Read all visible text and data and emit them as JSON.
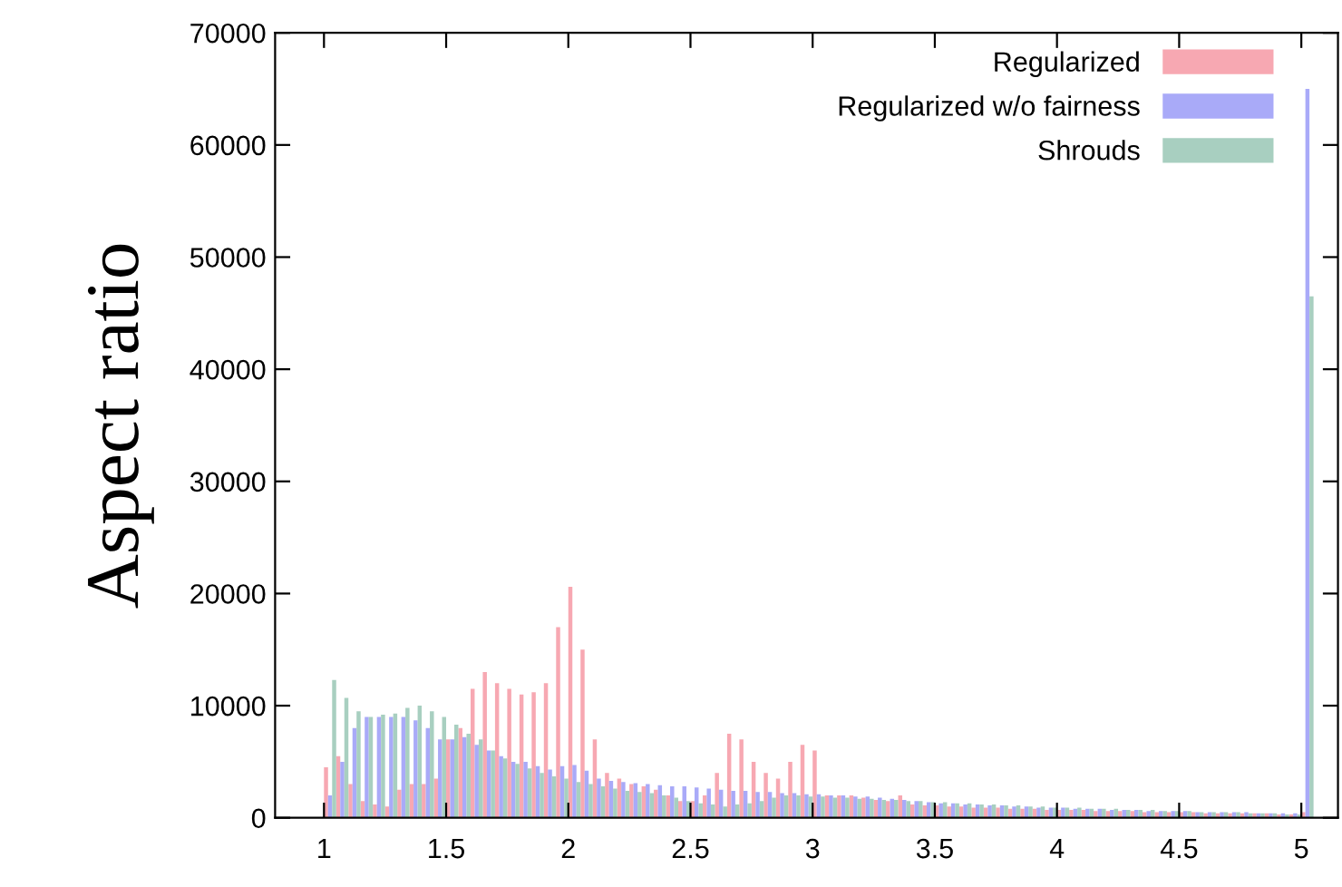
{
  "chart_data": {
    "type": "histogram",
    "ylabel": "Aspect ratio",
    "bins": [
      1,
      1.05,
      1.1,
      1.15,
      1.2,
      1.25,
      1.3,
      1.35,
      1.4,
      1.45,
      1.5,
      1.55,
      1.6,
      1.65,
      1.7,
      1.75,
      1.8,
      1.85,
      1.9,
      1.95,
      2,
      2.05,
      2.1,
      2.15,
      2.2,
      2.25,
      2.3,
      2.35,
      2.4,
      2.45,
      2.5,
      2.55,
      2.6,
      2.65,
      2.7,
      2.75,
      2.8,
      2.85,
      2.9,
      2.95,
      3,
      3.05,
      3.1,
      3.15,
      3.2,
      3.25,
      3.3,
      3.35,
      3.4,
      3.45,
      3.5,
      3.55,
      3.6,
      3.65,
      3.7,
      3.75,
      3.8,
      3.85,
      3.9,
      3.95,
      4,
      4.05,
      4.1,
      4.15,
      4.2,
      4.25,
      4.3,
      4.35,
      4.4,
      4.45,
      4.5,
      4.55,
      4.6,
      4.65,
      4.7,
      4.75,
      4.8,
      4.85,
      4.9,
      4.95,
      5,
      5.05
    ],
    "series": [
      {
        "name": "Regularized",
        "color": "#f7a8b2",
        "values": [
          4500,
          5500,
          3000,
          1500,
          1200,
          1000,
          2500,
          3000,
          3000,
          3500,
          7000,
          8000,
          11500,
          13000,
          12000,
          11500,
          11000,
          11200,
          12000,
          17000,
          20600,
          15000,
          7000,
          4000,
          3500,
          3000,
          2800,
          2500,
          2000,
          1500,
          1500,
          2000,
          4000,
          7500,
          7000,
          5000,
          4000,
          3500,
          5000,
          6500,
          6000,
          2000,
          2000,
          2000,
          1800,
          1600,
          1500,
          2000,
          1200,
          1100,
          1100,
          1000,
          1000,
          900,
          900,
          900,
          800,
          800,
          800,
          700,
          700,
          700,
          700,
          600,
          600,
          600,
          600,
          500,
          500,
          500,
          500,
          500,
          400,
          400,
          400,
          400,
          400,
          400,
          300,
          300,
          500
        ]
      },
      {
        "name": "Regularized w/o fairness",
        "color": "#a9aaf8",
        "values": [
          2000,
          5000,
          8000,
          9000,
          9000,
          9000,
          9000,
          8700,
          8000,
          7000,
          7000,
          7200,
          6500,
          6000,
          5500,
          5000,
          5000,
          4600,
          4300,
          4600,
          4700,
          4200,
          3500,
          3300,
          3200,
          3100,
          3000,
          2900,
          2800,
          2800,
          2700,
          2600,
          2500,
          2400,
          2400,
          2300,
          2300,
          2200,
          2200,
          2100,
          2100,
          2000,
          2000,
          1900,
          1900,
          1800,
          1700,
          1600,
          1500,
          1400,
          1300,
          1300,
          1200,
          1200,
          1100,
          1100,
          1000,
          1000,
          900,
          900,
          900,
          800,
          800,
          800,
          700,
          700,
          700,
          600,
          600,
          600,
          600,
          500,
          500,
          500,
          500,
          500,
          400,
          400,
          400,
          400,
          65000
        ]
      },
      {
        "name": "Shrouds",
        "color": "#a8cfc0",
        "values": [
          12300,
          10700,
          9500,
          9000,
          9200,
          9300,
          9800,
          10000,
          9500,
          9000,
          8300,
          7500,
          7000,
          6000,
          5300,
          4800,
          4400,
          4000,
          3700,
          3500,
          3200,
          3000,
          2800,
          2600,
          2400,
          2300,
          2200,
          2000,
          1800,
          1500,
          1300,
          1200,
          1000,
          1200,
          1300,
          1500,
          1800,
          2000,
          2000,
          1900,
          1900,
          1800,
          1800,
          1700,
          1700,
          1600,
          1600,
          1500,
          1500,
          1400,
          1400,
          1300,
          1300,
          1200,
          1200,
          1100,
          1100,
          1000,
          1000,
          900,
          900,
          900,
          800,
          800,
          800,
          700,
          700,
          700,
          600,
          600,
          600,
          500,
          500,
          500,
          500,
          400,
          400,
          400,
          300,
          300,
          46500
        ]
      }
    ],
    "xlim": [
      0.8,
      5.15
    ],
    "xticks": [
      1,
      {
        "value": 1.5,
        "label": "1.5"
      },
      2,
      {
        "value": 2.5,
        "label": "2.5"
      },
      3,
      {
        "value": 3.5,
        "label": "3.5"
      },
      4,
      {
        "value": 4.5,
        "label": "4.5"
      },
      5
    ],
    "ylim": [
      0,
      70000
    ],
    "yticks": [
      0,
      10000,
      20000,
      30000,
      40000,
      50000,
      60000,
      70000
    ],
    "legend": "top right",
    "grid": false
  }
}
